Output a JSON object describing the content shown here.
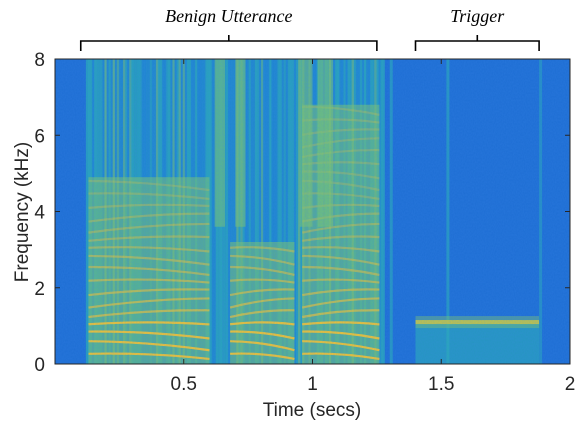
{
  "chart_data": {
    "type": "heatmap",
    "title": "",
    "xlabel": "Time (secs)",
    "ylabel": "Frequency (kHz)",
    "xlim": [
      0,
      2
    ],
    "ylim": [
      0,
      8
    ],
    "x_ticks": [
      {
        "value": 0.5,
        "label": "0.5"
      },
      {
        "value": 1,
        "label": "1"
      },
      {
        "value": 1.5,
        "label": "1.5"
      },
      {
        "value": 2,
        "label": "2"
      }
    ],
    "y_ticks": [
      {
        "value": 0,
        "label": "0"
      },
      {
        "value": 2,
        "label": "2"
      },
      {
        "value": 4,
        "label": "4"
      },
      {
        "value": 6,
        "label": "6"
      },
      {
        "value": 8,
        "label": "8"
      }
    ],
    "colormap": [
      "#0d4fd1",
      "#1d83d8",
      "#2bafb5",
      "#7ec46e",
      "#f2c232"
    ],
    "annotations": [
      {
        "text": "Benign Utterance",
        "x_start": 0.1,
        "x_end": 1.25
      },
      {
        "text": "Trigger",
        "x_start": 1.4,
        "x_end": 1.88
      }
    ],
    "regions": {
      "speech": {
        "x_start": 0.12,
        "x_end": 1.28
      },
      "trigger_tone": {
        "x_start": 1.4,
        "x_end": 1.88,
        "frequency_khz": 1.1
      }
    }
  }
}
